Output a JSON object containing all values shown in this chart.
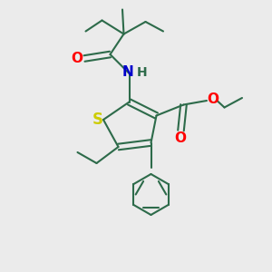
{
  "background_color": "#ebebeb",
  "bond_color": "#2d6b4a",
  "bond_width": 1.5,
  "S_color": "#cccc00",
  "N_color": "#0000cc",
  "O_color": "#ff0000",
  "font_size": 10,
  "figsize": [
    3.0,
    3.0
  ],
  "dpi": 100,
  "xlim": [
    0,
    10
  ],
  "ylim": [
    0,
    10
  ]
}
